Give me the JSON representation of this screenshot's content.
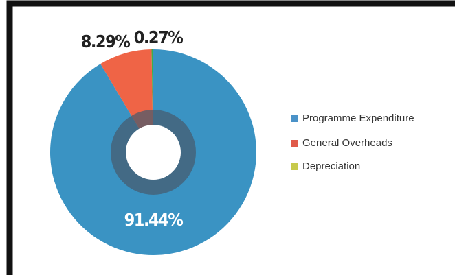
{
  "chart_data": {
    "type": "donut",
    "categories": [
      "Programme Expenditure",
      "General Overheads",
      "Depreciation"
    ],
    "values": [
      91.44,
      8.29,
      0.27
    ],
    "value_labels": [
      "91.44%",
      "8.29%",
      "0.27%"
    ],
    "colors": [
      "#3a93c3",
      "#ef6446",
      "#3fae49"
    ],
    "legend_colors": [
      "#4a92c8",
      "#e05a4a",
      "#c7ca4c"
    ],
    "legend": "right"
  }
}
